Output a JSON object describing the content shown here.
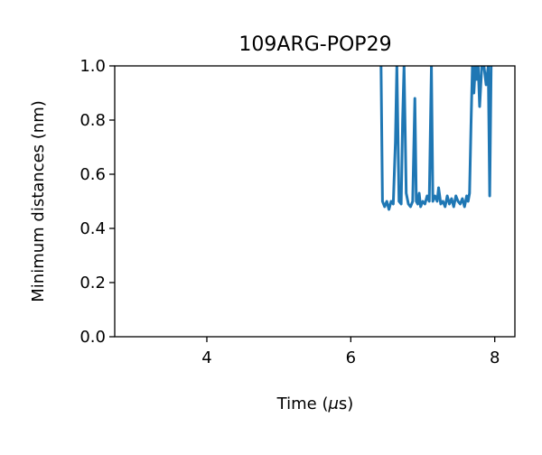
{
  "chart_data": {
    "type": "line",
    "title": "109ARG-POP29",
    "xlabel_prefix": "Time (",
    "xlabel_symbol": "μ",
    "xlabel_suffix": "s)",
    "ylabel": "Minimum distances (nm)",
    "xlim": [
      2.72,
      8.28
    ],
    "ylim": [
      0.0,
      1.0
    ],
    "grid": false,
    "x_ticks": [
      4,
      6,
      8
    ],
    "y_ticks": [
      0.0,
      0.2,
      0.4,
      0.6,
      0.8,
      1.0
    ],
    "x_tick_labels": [
      "4",
      "6",
      "8"
    ],
    "y_tick_labels": [
      "0.0",
      "0.2",
      "0.4",
      "0.6",
      "0.8",
      "1.0"
    ],
    "series": [
      {
        "color": "#1f77b4",
        "points": [
          [
            6.42,
            1.0
          ],
          [
            6.44,
            0.5
          ],
          [
            6.47,
            0.48
          ],
          [
            6.5,
            0.5
          ],
          [
            6.53,
            0.47
          ],
          [
            6.56,
            0.5
          ],
          [
            6.59,
            0.49
          ],
          [
            6.62,
            0.72
          ],
          [
            6.64,
            1.0
          ],
          [
            6.67,
            0.5
          ],
          [
            6.7,
            0.49
          ],
          [
            6.72,
            0.8
          ],
          [
            6.74,
            1.0
          ],
          [
            6.77,
            0.53
          ],
          [
            6.8,
            0.49
          ],
          [
            6.83,
            0.48
          ],
          [
            6.86,
            0.5
          ],
          [
            6.89,
            0.88
          ],
          [
            6.91,
            0.5
          ],
          [
            6.93,
            0.49
          ],
          [
            6.95,
            0.53
          ],
          [
            6.97,
            0.48
          ],
          [
            7.0,
            0.5
          ],
          [
            7.03,
            0.49
          ],
          [
            7.06,
            0.52
          ],
          [
            7.09,
            0.5
          ],
          [
            7.12,
            1.0
          ],
          [
            7.14,
            0.5
          ],
          [
            7.17,
            0.52
          ],
          [
            7.2,
            0.5
          ],
          [
            7.22,
            0.55
          ],
          [
            7.25,
            0.49
          ],
          [
            7.28,
            0.5
          ],
          [
            7.31,
            0.48
          ],
          [
            7.34,
            0.52
          ],
          [
            7.37,
            0.49
          ],
          [
            7.4,
            0.51
          ],
          [
            7.43,
            0.48
          ],
          [
            7.46,
            0.52
          ],
          [
            7.49,
            0.5
          ],
          [
            7.52,
            0.49
          ],
          [
            7.55,
            0.51
          ],
          [
            7.58,
            0.48
          ],
          [
            7.61,
            0.52
          ],
          [
            7.63,
            0.5
          ],
          [
            7.65,
            0.53
          ],
          [
            7.67,
            0.78
          ],
          [
            7.69,
            1.0
          ],
          [
            7.71,
            0.9
          ],
          [
            7.73,
            1.0
          ],
          [
            7.75,
            0.95
          ],
          [
            7.77,
            1.0
          ],
          [
            7.79,
            0.85
          ],
          [
            7.82,
            1.0
          ],
          [
            7.85,
            1.0
          ],
          [
            7.88,
            0.93
          ],
          [
            7.91,
            1.0
          ],
          [
            7.93,
            0.52
          ],
          [
            7.95,
            1.0
          ]
        ]
      }
    ]
  }
}
